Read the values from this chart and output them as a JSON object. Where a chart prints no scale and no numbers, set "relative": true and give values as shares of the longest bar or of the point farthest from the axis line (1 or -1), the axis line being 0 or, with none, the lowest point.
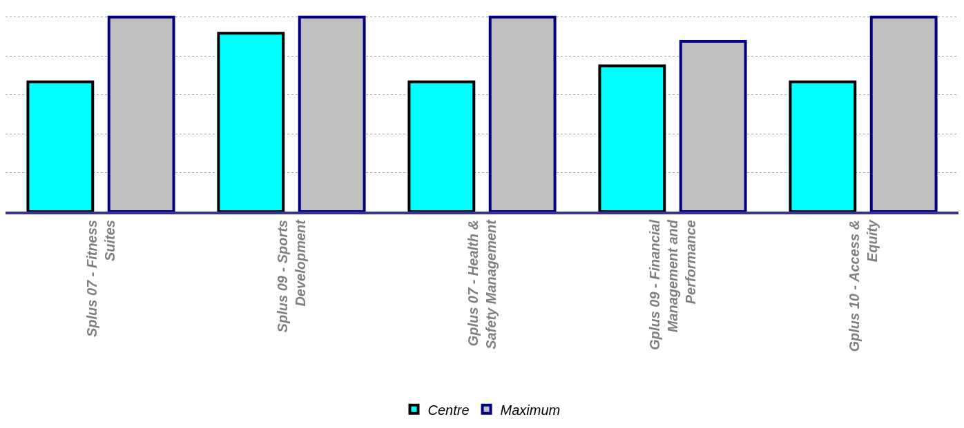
{
  "chart_data": {
    "type": "bar",
    "relative": true,
    "categories": [
      "Splus 07 - Fitness Suites",
      "Splus 09 - Sports Development",
      "Gplus 07 - Health & Safety Management",
      "Gplus 09 - Financial Management and Performance",
      "Gplus 10 - Access & Equity"
    ],
    "series": [
      {
        "name": "Centre",
        "color": "#00ffff",
        "values": [
          0.667,
          0.917,
          0.667,
          0.75,
          0.667
        ]
      },
      {
        "name": "Maximum",
        "color": "#c0c0c0",
        "values": [
          1,
          1,
          1,
          0.875,
          1
        ]
      }
    ],
    "grid": "y",
    "legend": "bottom"
  }
}
